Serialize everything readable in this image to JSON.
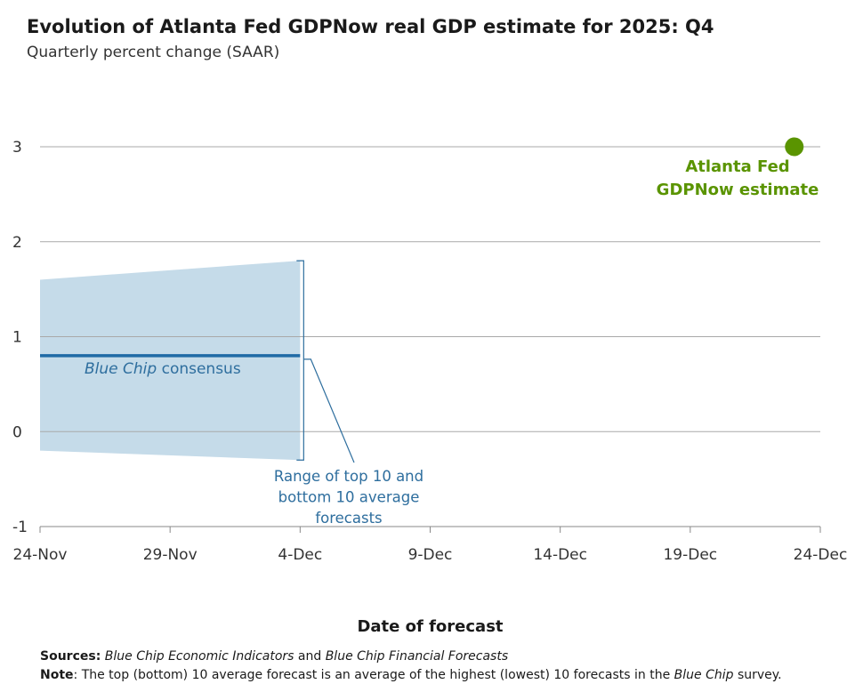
{
  "chart_data": {
    "type": "line",
    "title": "Evolution of Atlanta Fed GDPNow real GDP estimate for 2025: Q4",
    "subtitle": "Quarterly percent change (SAAR)",
    "xlabel": "Date of forecast",
    "ylabel": "",
    "x_tick_labels": [
      "24-Nov",
      "29-Nov",
      "4-Dec",
      "9-Dec",
      "14-Dec",
      "19-Dec",
      "24-Dec"
    ],
    "x_range_days": [
      0,
      30
    ],
    "y_tick_values": [
      -1,
      0,
      1,
      2,
      3
    ],
    "y_tick_labels": [
      "-1",
      "0",
      "1",
      "2",
      "3"
    ],
    "ylim": [
      -1,
      3
    ],
    "grid": true,
    "series": [
      {
        "name": "Blue Chip consensus",
        "type": "line",
        "x_days": [
          0,
          10
        ],
        "values": [
          0.8,
          0.8
        ],
        "label_italic": "Blue Chip",
        "label_rest": " consensus"
      },
      {
        "name": "Range of top 10 and bottom 10 average forecasts",
        "type": "band",
        "x_days": [
          0,
          10
        ],
        "upper": [
          1.6,
          1.8
        ],
        "lower": [
          -0.2,
          -0.3
        ],
        "label_lines": [
          "Range of top 10 and",
          "bottom 10 average",
          "forecasts"
        ]
      },
      {
        "name": "Atlanta Fed GDPNow estimate",
        "type": "point",
        "x_days": [
          29
        ],
        "values": [
          3.0
        ],
        "label_lines": [
          "Atlanta Fed",
          "GDPNow estimate"
        ]
      }
    ],
    "colors": {
      "gdpnow": "#5a9400",
      "consensus_line": "#1f6aa5",
      "band_fill": "#c5dbe9",
      "annotation": "#2e6e9e",
      "grid": "#a9a9a9",
      "axis": "#888888"
    }
  },
  "footnotes": {
    "sources_label": "Sources:",
    "sources_italic_1": "Blue Chip Economic Indicators",
    "sources_and": " and ",
    "sources_italic_2": "Blue Chip Financial Forecasts",
    "note_label": "Note",
    "note_text": ": The top (bottom) 10 average forecast is an average of the highest (lowest) 10 forecasts in the ",
    "note_italic": "Blue Chip",
    "note_end": " survey."
  }
}
